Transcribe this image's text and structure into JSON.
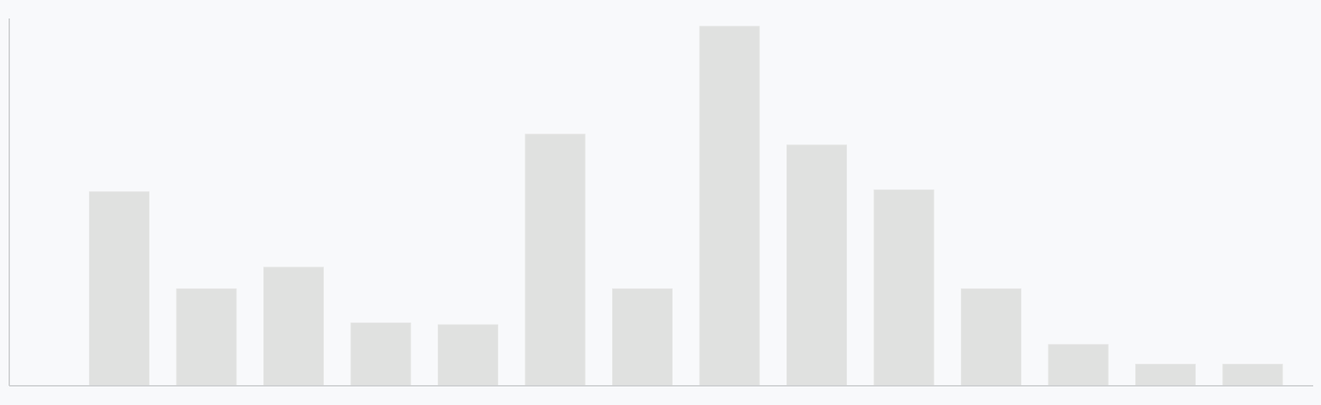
{
  "chart_data": {
    "type": "bar",
    "title": "",
    "xlabel": "",
    "ylabel": "",
    "categories": [
      "",
      "",
      "",
      "",
      "",
      "",
      "",
      "",
      "",
      "",
      "",
      "",
      "",
      ""
    ],
    "values": [
      54,
      27,
      33,
      17.5,
      17,
      70,
      27,
      100,
      67,
      54.5,
      27,
      11.5,
      6,
      6
    ],
    "ylim": [
      0,
      100
    ],
    "grid": false,
    "legend": "none",
    "colors": {
      "bar": "#e0e1e0",
      "axis": "#cfd1d3",
      "background": "#f8f9fb"
    }
  }
}
